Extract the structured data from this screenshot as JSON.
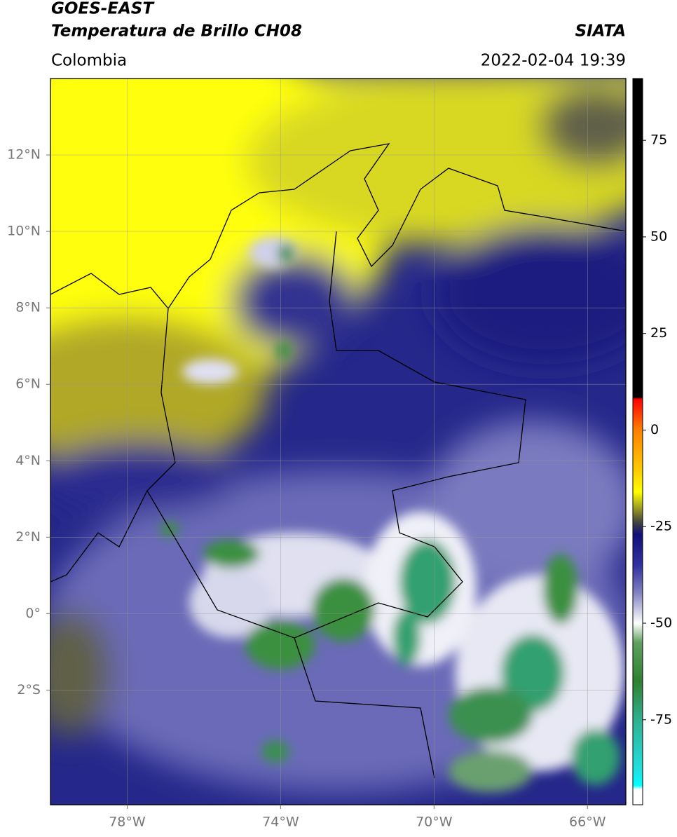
{
  "header": {
    "satellite": "GOES-EAST",
    "product": "Temperatura de Brillo CH08",
    "source": "SIATA",
    "region": "Colombia",
    "datetime": "2022-02-04 19:39"
  },
  "map": {
    "xlim": [
      -80,
      -65
    ],
    "ylim": [
      -5,
      14
    ],
    "grid": true,
    "xticks": [
      {
        "value": -78,
        "label": "78°W"
      },
      {
        "value": -74,
        "label": "74°W"
      },
      {
        "value": -70,
        "label": "70°W"
      },
      {
        "value": -66,
        "label": "66°W"
      }
    ],
    "yticks": [
      {
        "value": 12,
        "label": "12°N"
      },
      {
        "value": 10,
        "label": "10°N"
      },
      {
        "value": 8,
        "label": "8°N"
      },
      {
        "value": 6,
        "label": "6°N"
      },
      {
        "value": 4,
        "label": "4°N"
      },
      {
        "value": 2,
        "label": "2°N"
      },
      {
        "value": 0,
        "label": "0°"
      },
      {
        "value": -2,
        "label": "2°S"
      }
    ]
  },
  "colorbar": {
    "lim": [
      -97,
      91
    ],
    "ticks": [
      75,
      50,
      25,
      0,
      -25,
      -50,
      -75
    ],
    "stops": [
      {
        "value": 91,
        "color": "#000000"
      },
      {
        "value": 8.5,
        "color": "#000000"
      },
      {
        "value": 8,
        "color": "#ff0000"
      },
      {
        "value": 0,
        "color": "#ff8000"
      },
      {
        "value": -10,
        "color": "#ffc800"
      },
      {
        "value": -16,
        "color": "#ffff00"
      },
      {
        "value": -20,
        "color": "#a0a020"
      },
      {
        "value": -24,
        "color": "#404040"
      },
      {
        "value": -27,
        "color": "#10107a"
      },
      {
        "value": -35,
        "color": "#3030a0"
      },
      {
        "value": -42,
        "color": "#8080c0"
      },
      {
        "value": -50,
        "color": "#ffffff"
      },
      {
        "value": -55,
        "color": "#60a060"
      },
      {
        "value": -65,
        "color": "#308030"
      },
      {
        "value": -75,
        "color": "#30b090"
      },
      {
        "value": -88,
        "color": "#20e0e0"
      },
      {
        "value": -92,
        "color": "#00ffff"
      },
      {
        "value": -93,
        "color": "#ffffff"
      },
      {
        "value": -97,
        "color": "#ffffff"
      }
    ]
  }
}
